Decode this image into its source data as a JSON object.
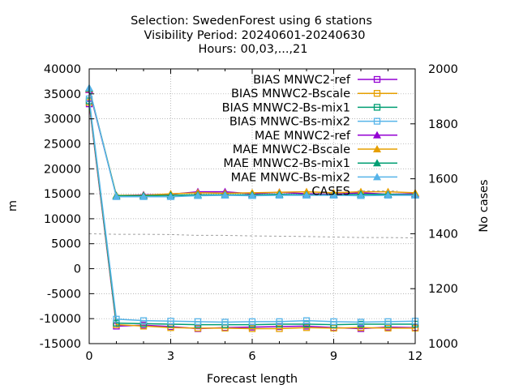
{
  "chart_data": {
    "type": "line",
    "title_lines": [
      "Selection: SwedenForest using     6 stations",
      "Visibility   Period: 20240601-20240630",
      "Hours: 00,03,...,21"
    ],
    "xlabel": "Forecast length",
    "ylabel": "m",
    "y2label": "No cases",
    "xlim": [
      0,
      12
    ],
    "ylim": [
      -15000,
      40000
    ],
    "y2lim": [
      1000,
      2000
    ],
    "x_ticks": [
      "0",
      "3",
      "6",
      "9",
      "12"
    ],
    "y_ticks": [
      "-15000",
      "-10000",
      "-5000",
      "0",
      "5000",
      "10000",
      "15000",
      "20000",
      "25000",
      "30000",
      "35000",
      "40000"
    ],
    "y2_ticks": [
      "1000",
      "1200",
      "1400",
      "1600",
      "1800",
      "2000"
    ],
    "grid": true,
    "legend_position": "top-right",
    "x": [
      0,
      1,
      2,
      3,
      4,
      5,
      6,
      7,
      8,
      9,
      10,
      11,
      12
    ],
    "series": [
      {
        "name": "BIAS MNWC2-ref",
        "color": "#9400d3",
        "marker": "square-open",
        "axis": "left",
        "values": [
          33000,
          -11500,
          -11300,
          -11600,
          -12000,
          -11800,
          -11700,
          -11600,
          -11500,
          -11800,
          -12000,
          -11700,
          -11800
        ]
      },
      {
        "name": "BIAS MNWC2-Bscale",
        "color": "#e69f00",
        "marker": "square-open",
        "axis": "left",
        "values": [
          33300,
          -11200,
          -11500,
          -11800,
          -11900,
          -11900,
          -12000,
          -12000,
          -11800,
          -11900,
          -11800,
          -11900,
          -11900
        ]
      },
      {
        "name": "BIAS MNWC2-Bs-mix1",
        "color": "#009e73",
        "marker": "square-open",
        "axis": "left",
        "values": [
          33600,
          -10900,
          -11000,
          -11100,
          -11200,
          -11200,
          -11200,
          -11100,
          -11100,
          -11200,
          -11100,
          -11100,
          -11100
        ]
      },
      {
        "name": "BIAS MNWC-Bs-mix2",
        "color": "#56b4e9",
        "marker": "square-open",
        "axis": "left",
        "values": [
          34000,
          -10100,
          -10400,
          -10500,
          -10600,
          -10700,
          -10600,
          -10600,
          -10400,
          -10600,
          -10700,
          -10600,
          -10500
        ]
      },
      {
        "name": "MAE MNWC2-ref",
        "color": "#9400d3",
        "marker": "triangle",
        "axis": "left",
        "values": [
          35800,
          14600,
          14800,
          14900,
          15400,
          15400,
          15000,
          15300,
          15000,
          14900,
          15200,
          14900,
          15000
        ]
      },
      {
        "name": "MAE MNWC2-Bscale",
        "color": "#e69f00",
        "marker": "triangle",
        "axis": "left",
        "values": [
          36000,
          14700,
          14700,
          15000,
          15200,
          15100,
          15200,
          15300,
          15400,
          15200,
          15400,
          15400,
          15200
        ]
      },
      {
        "name": "MAE MNWC2-Bs-mix1",
        "color": "#009e73",
        "marker": "triangle",
        "axis": "left",
        "values": [
          36100,
          14600,
          14600,
          14700,
          14800,
          14800,
          14800,
          14900,
          14800,
          14800,
          14900,
          14900,
          14800
        ]
      },
      {
        "name": "MAE MNWC-Bs-mix2",
        "color": "#56b4e9",
        "marker": "triangle",
        "axis": "left",
        "values": [
          36200,
          14400,
          14400,
          14400,
          14600,
          14700,
          14600,
          14700,
          14700,
          14700,
          14600,
          14700,
          14700
        ]
      },
      {
        "name": "CASES",
        "color": "#a0a0a0",
        "marker": "none",
        "axis": "right",
        "dashed": true,
        "values": [
          1400,
          1398,
          1398,
          1397,
          1394,
          1394,
          1392,
          1391,
          1390,
          1388,
          1386,
          1386,
          1385
        ]
      }
    ]
  }
}
